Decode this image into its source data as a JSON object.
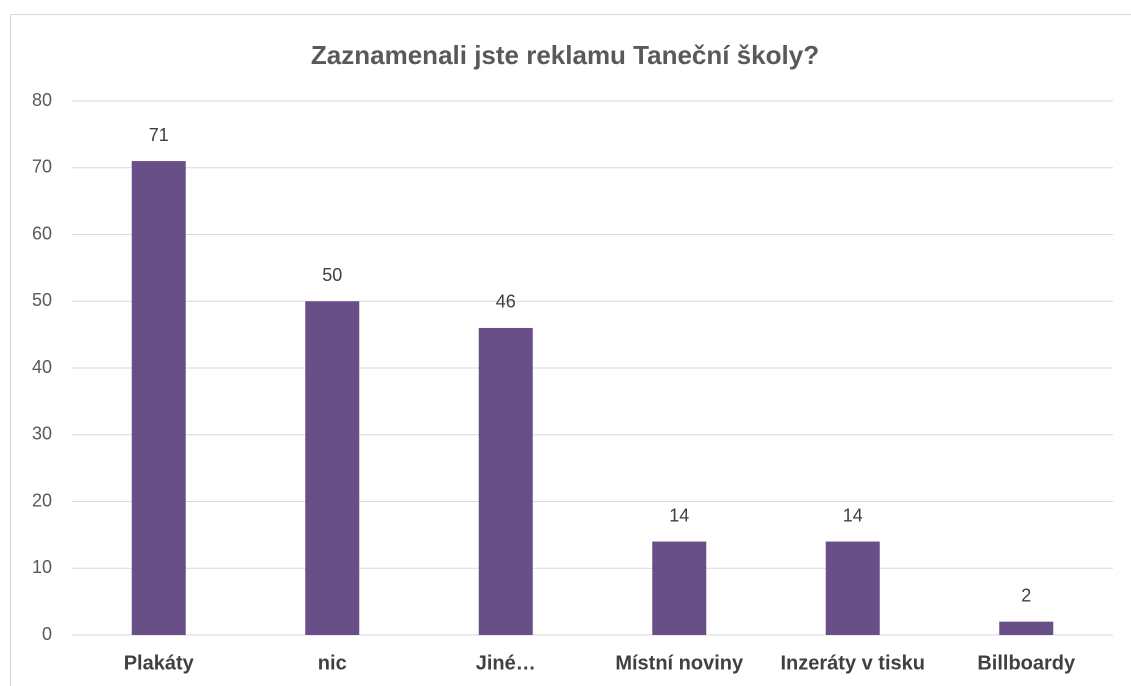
{
  "chart_data": {
    "type": "bar",
    "title": "Zaznamenali jste reklamu Taneční školy?",
    "categories": [
      "Plakáty",
      "nic",
      "Jiné…",
      "Místní noviny",
      "Inzeráty v tisku",
      "Billboardy"
    ],
    "values": [
      71,
      50,
      46,
      14,
      14,
      2
    ],
    "color": "#684f87",
    "ylim": [
      0,
      80
    ],
    "yticks": [
      0,
      10,
      20,
      30,
      40,
      50,
      60,
      70,
      80
    ],
    "grid": true
  }
}
